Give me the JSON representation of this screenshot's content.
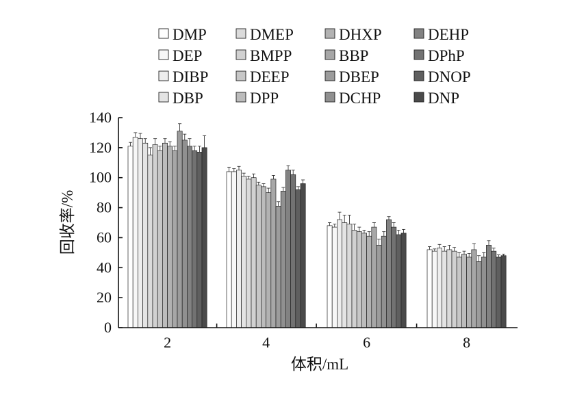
{
  "chart_data": {
    "type": "bar",
    "categories": [
      "2",
      "4",
      "6",
      "8"
    ],
    "xlabel": "体积/mL",
    "ylabel": "回收率/%",
    "ylim": [
      0,
      140
    ],
    "yticks": [
      "0",
      "20",
      "40",
      "60",
      "80",
      "100",
      "120",
      "140"
    ],
    "grid": false,
    "legend_position": "top",
    "error_bars": true,
    "series": [
      {
        "name": "DMP",
        "color": "#ffffff",
        "values": [
          121,
          104,
          68,
          52
        ],
        "errors": [
          2.5,
          3,
          2,
          2
        ]
      },
      {
        "name": "DEP",
        "color": "#f7f7f7",
        "values": [
          127,
          104,
          67,
          51
        ],
        "errors": [
          3,
          2,
          2,
          1.5
        ]
      },
      {
        "name": "DIBP",
        "color": "#eeeeee",
        "values": [
          126,
          105,
          72,
          53
        ],
        "errors": [
          3.5,
          2.5,
          5,
          2.5
        ]
      },
      {
        "name": "DBP",
        "color": "#e4e4e4",
        "values": [
          123,
          101,
          70,
          51
        ],
        "errors": [
          3,
          2,
          5,
          3
        ]
      },
      {
        "name": "DMEP",
        "color": "#dbdbdb",
        "values": [
          115,
          99,
          69,
          52
        ],
        "errors": [
          5,
          2,
          6,
          3
        ]
      },
      {
        "name": "BMPP",
        "color": "#d1d1d1",
        "values": [
          122,
          100,
          65,
          51
        ],
        "errors": [
          4,
          2.5,
          4,
          2.5
        ]
      },
      {
        "name": "DEEP",
        "color": "#c7c7c7",
        "values": [
          118,
          95,
          64,
          47
        ],
        "errors": [
          3,
          2,
          3,
          3
        ]
      },
      {
        "name": "DPP",
        "color": "#bcbcbc",
        "values": [
          123,
          94,
          63,
          49
        ],
        "errors": [
          3,
          2,
          2,
          2
        ]
      },
      {
        "name": "DHXP",
        "color": "#b2b2b2",
        "values": [
          121,
          90,
          61,
          47
        ],
        "errors": [
          3,
          3,
          3,
          2.5
        ]
      },
      {
        "name": "BBP",
        "color": "#a7a7a7",
        "values": [
          118,
          99,
          67,
          52
        ],
        "errors": [
          3,
          2.5,
          3,
          4
        ]
      },
      {
        "name": "DBEP",
        "color": "#9c9c9c",
        "values": [
          131,
          81,
          55,
          44
        ],
        "errors": [
          5,
          3,
          4,
          4
        ]
      },
      {
        "name": "DCHP",
        "color": "#909090",
        "values": [
          125,
          91,
          61,
          47
        ],
        "errors": [
          4,
          2.5,
          3,
          3
        ]
      },
      {
        "name": "DEHP",
        "color": "#828282",
        "values": [
          121,
          105,
          72,
          55
        ],
        "errors": [
          5,
          3,
          2,
          3
        ]
      },
      {
        "name": "DPhP",
        "color": "#727272",
        "values": [
          118,
          102,
          67,
          51
        ],
        "errors": [
          3,
          3,
          3,
          2
        ]
      },
      {
        "name": "DNOP",
        "color": "#5f5f5f",
        "values": [
          117,
          92,
          62,
          47
        ],
        "errors": [
          4,
          2,
          3,
          1.5
        ]
      },
      {
        "name": "DNP",
        "color": "#4a4a4a",
        "values": [
          120,
          96,
          63,
          48
        ],
        "errors": [
          8,
          2.5,
          2.5,
          1
        ]
      }
    ]
  }
}
